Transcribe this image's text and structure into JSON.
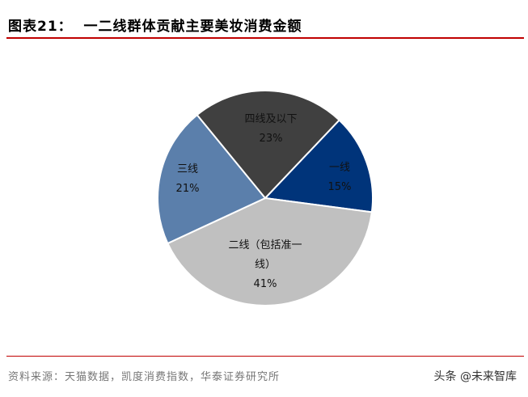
{
  "chart_data": {
    "type": "pie",
    "title": "图表21：  一二线群体贡献主要美妆消费金额",
    "categories": [
      "一线",
      "二线（包括准一线）",
      "三线",
      "四线及以下"
    ],
    "values": [
      15,
      41,
      21,
      23
    ],
    "value_labels": [
      "15%",
      "41%",
      "21%",
      "23%"
    ],
    "colors": [
      "#00347a",
      "#c0c0c0",
      "#5b7fab",
      "#404040"
    ],
    "source": "资料来源：天猫数据，凯度消费指数，华泰证券研究所",
    "watermark": "头条 @未来智库"
  }
}
